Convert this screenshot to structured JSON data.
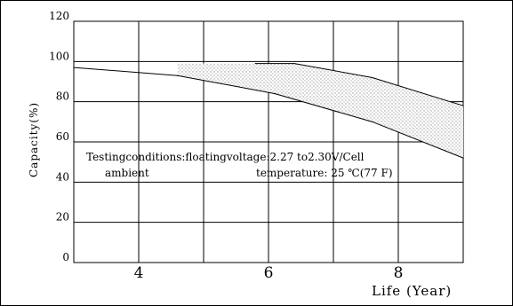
{
  "chart_data": {
    "type": "line",
    "ylabel": "Capacity(%)",
    "xlabel": "Life (Year)",
    "ylim": [
      0,
      120
    ],
    "xlim": [
      3,
      9
    ],
    "yticks": [
      0,
      20,
      40,
      60,
      80,
      100,
      120
    ],
    "xticks": [
      4,
      6,
      8
    ],
    "grid": true,
    "series": [
      {
        "x": [
          3,
          4.6,
          6.1,
          7.6,
          9
        ],
        "y": [
          97,
          93,
          84,
          70,
          52
        ]
      },
      {
        "x": [
          5.8,
          6.4,
          7.6,
          9
        ],
        "y": [
          99,
          99,
          92,
          78
        ]
      }
    ],
    "shaded_region": "between the two curves",
    "annotations": [
      {
        "text": "Testingconditions:floatingvoltage:2.27 to2.30V/Cell"
      },
      {
        "text": "ambient"
      },
      {
        "text": "temperature: 25 ℃(77 F)"
      }
    ]
  }
}
